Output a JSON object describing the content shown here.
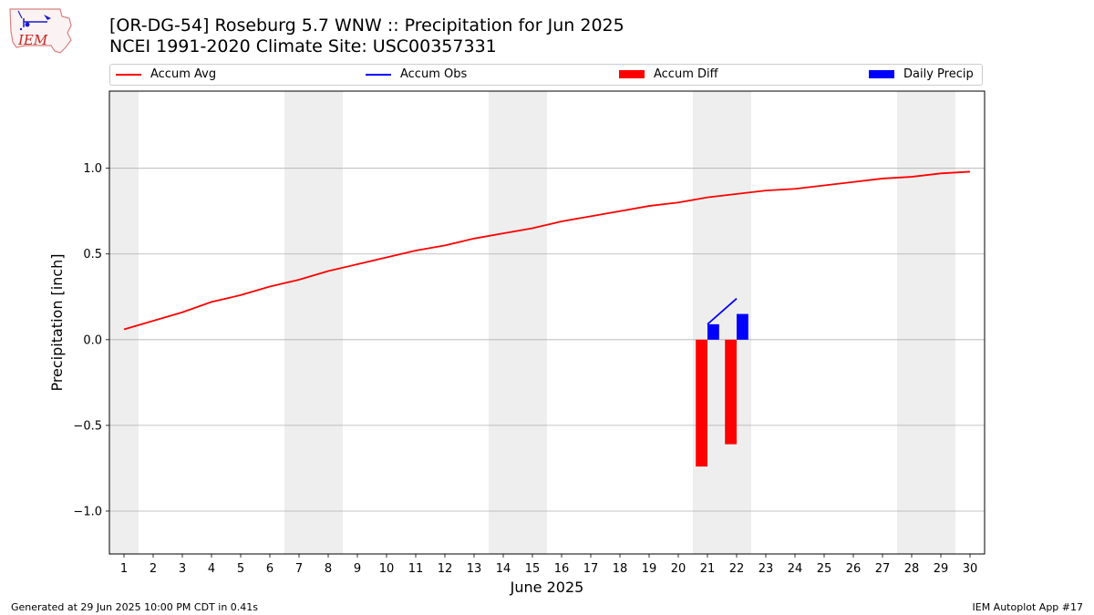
{
  "header": {
    "title_line1": "[OR-DG-54] Roseburg 5.7 WNW :: Precipitation for Jun 2025",
    "title_line2": "NCEI 1991-2020 Climate Site: USC00357331",
    "logo_text": "IEM"
  },
  "legend": [
    {
      "label": "Accum Avg",
      "kind": "line",
      "color": "#ff0000"
    },
    {
      "label": "Accum Obs",
      "kind": "line",
      "color": "#0000ff"
    },
    {
      "label": "Accum Diff",
      "kind": "box",
      "color": "#ff0000"
    },
    {
      "label": "Daily Precip",
      "kind": "box",
      "color": "#0000ff"
    }
  ],
  "footer": {
    "left": "Generated at 29 Jun 2025 10:00 PM CDT in 0.41s",
    "right": "IEM Autoplot App #17"
  },
  "chart_data": {
    "type": "line",
    "xlabel": "June 2025",
    "ylabel": "Precipitation [inch]",
    "xlim": [
      0.5,
      30.5
    ],
    "ylim": [
      -1.25,
      1.45
    ],
    "x_ticks": [
      1,
      2,
      3,
      4,
      5,
      6,
      7,
      8,
      9,
      10,
      11,
      12,
      13,
      14,
      15,
      16,
      17,
      18,
      19,
      20,
      21,
      22,
      23,
      24,
      25,
      26,
      27,
      28,
      29,
      30
    ],
    "y_ticks": [
      -1.0,
      -0.5,
      0.0,
      0.5,
      1.0
    ],
    "y_tick_labels": [
      "−1.0",
      "−0.5",
      "0.0",
      "0.5",
      "1.0"
    ],
    "grid": "horizontal",
    "weekend_shading": [
      [
        0.5,
        1.5
      ],
      [
        6.5,
        8.5
      ],
      [
        13.5,
        15.5
      ],
      [
        20.5,
        22.5
      ],
      [
        27.5,
        29.5
      ]
    ],
    "colors": {
      "avg": "#ff0000",
      "obs": "#0000ff",
      "diff": "#ff0000",
      "daily": "#0000ff",
      "shade": "#eeeeee"
    },
    "series": [
      {
        "name": "Accum Avg",
        "kind": "line",
        "x": [
          1,
          2,
          3,
          4,
          5,
          6,
          7,
          8,
          9,
          10,
          11,
          12,
          13,
          14,
          15,
          16,
          17,
          18,
          19,
          20,
          21,
          22,
          23,
          24,
          25,
          26,
          27,
          28,
          29,
          30
        ],
        "values": [
          0.06,
          0.11,
          0.16,
          0.22,
          0.26,
          0.31,
          0.35,
          0.4,
          0.44,
          0.48,
          0.52,
          0.55,
          0.59,
          0.62,
          0.65,
          0.69,
          0.72,
          0.75,
          0.78,
          0.8,
          0.83,
          0.85,
          0.87,
          0.88,
          0.9,
          0.92,
          0.94,
          0.95,
          0.97,
          0.98
        ]
      },
      {
        "name": "Accum Obs",
        "kind": "line",
        "x": [
          21,
          22
        ],
        "values": [
          0.09,
          0.24
        ]
      },
      {
        "name": "Accum Diff",
        "kind": "bar",
        "x": [
          21,
          22
        ],
        "values": [
          -0.74,
          -0.61
        ]
      },
      {
        "name": "Daily Precip",
        "kind": "bar",
        "x": [
          21,
          22
        ],
        "values": [
          0.09,
          0.15
        ]
      }
    ]
  }
}
